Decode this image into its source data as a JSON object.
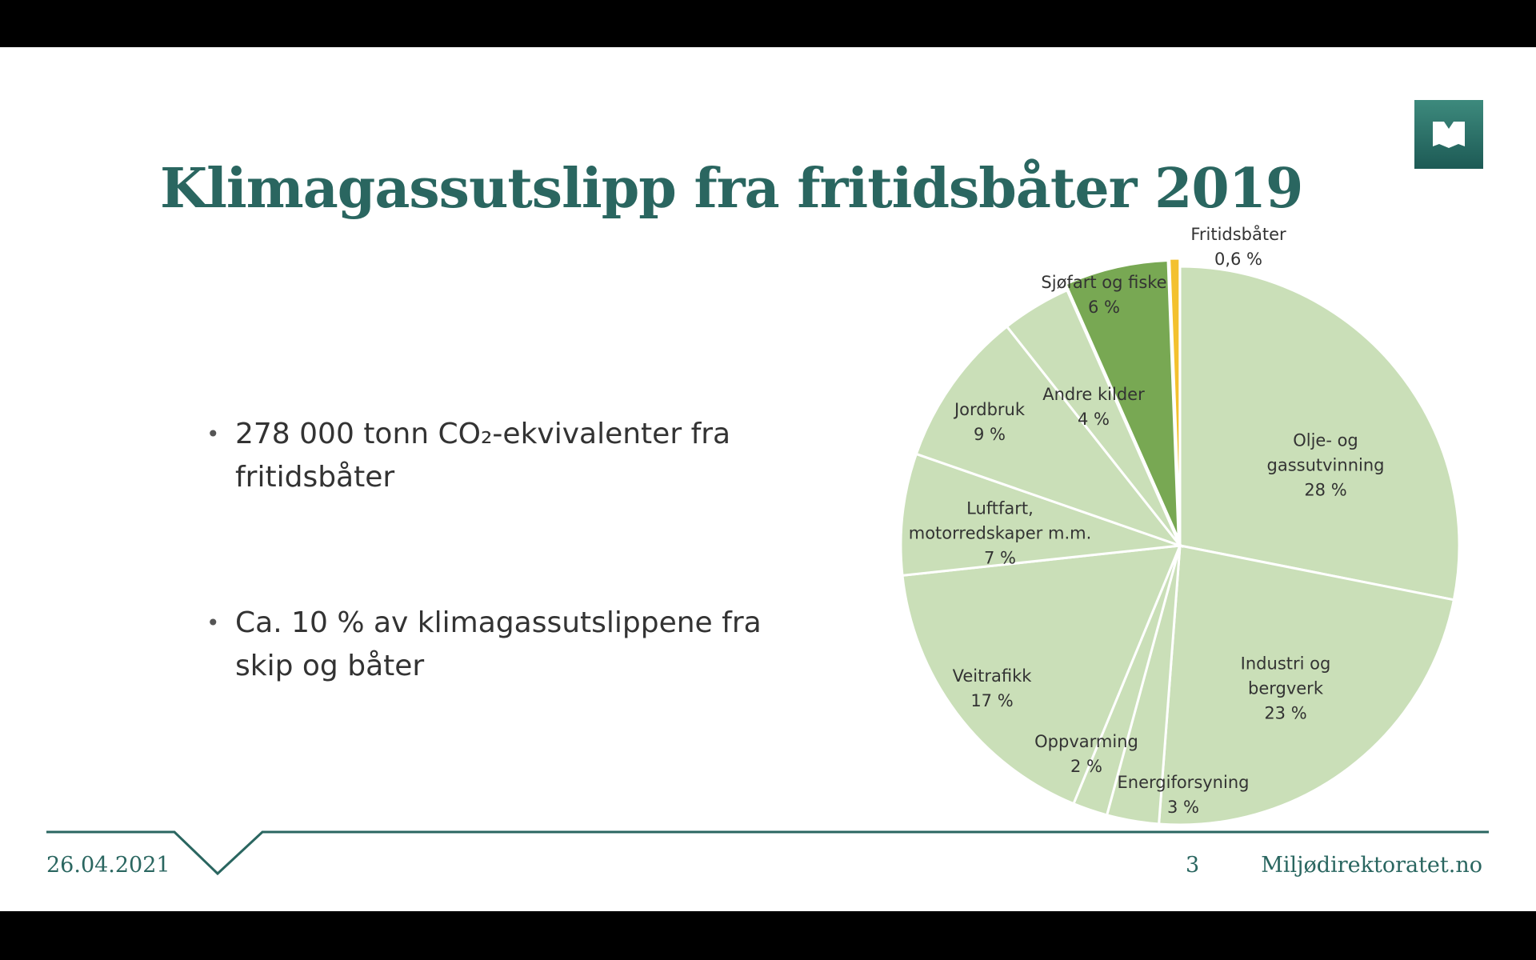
{
  "slide": {
    "title": "Klimagassutslipp fra fritidsbåter 2019",
    "bullets": [
      "278 000 tonn CO₂-ekvivalenter fra fritidsbåter",
      "Ca. 10 % av klimagassutslippene fra skip og båter"
    ],
    "date": "26.04.2021",
    "page_number": "3",
    "site": "Miljødirektoratet.no"
  },
  "chart_data": {
    "type": "pie",
    "categories": [
      "Olje- og\ngassutvinning",
      "Industri og\nbergverk",
      "Energiforsyning",
      "Oppvarming",
      "Veitrafikk",
      "Luftfart,\nmotorredskaper m.m.",
      "Jordbruk",
      "Andre kilder",
      "Sjøfart og fiske",
      "Fritidsbåter"
    ],
    "values": [
      28,
      23,
      3,
      2,
      17,
      7,
      9,
      4,
      6,
      0.6
    ],
    "value_labels": [
      "28 %",
      "23 %",
      "3 %",
      "2 %",
      "17 %",
      "7 %",
      "9 %",
      "4 %",
      "6 %",
      "0,6 %"
    ],
    "colors": [
      "#cadfb8",
      "#cadfb8",
      "#cadfb8",
      "#cadfb8",
      "#cadfb8",
      "#cadfb8",
      "#cadfb8",
      "#cadfb8",
      "#78a853",
      "#f3c12f"
    ]
  }
}
